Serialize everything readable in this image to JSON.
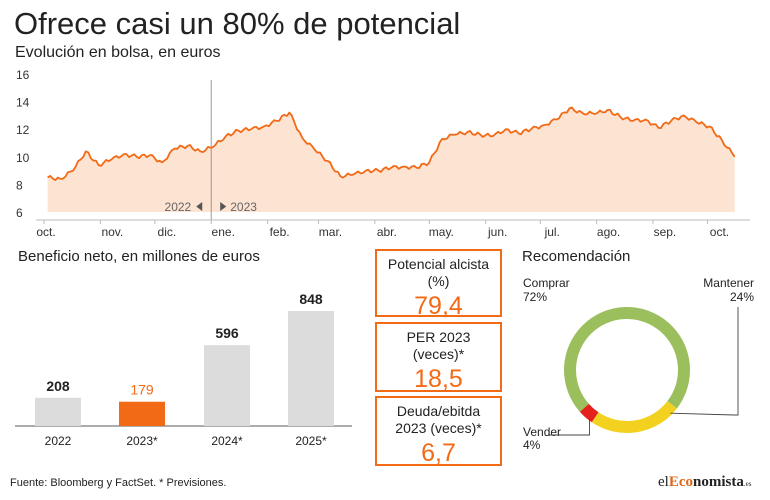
{
  "header": {
    "title": "Ofrece casi un 80% de potencial",
    "subtitle": "Evolución en bolsa, en euros"
  },
  "line": {
    "y_ticks": [
      "16",
      "14",
      "12",
      "10",
      "8",
      "6"
    ],
    "months": [
      "oct.",
      "nov.",
      "dic.",
      "ene.",
      "feb.",
      "mar.",
      "abr.",
      "may.",
      "jun.",
      "jul.",
      "ago.",
      "sep.",
      "oct."
    ],
    "year_left": "2022",
    "year_right": "2023"
  },
  "bars": {
    "title": "Beneficio neto, en millones de euros",
    "labels": [
      "208",
      "179",
      "596",
      "848"
    ],
    "categories": [
      "2022",
      "2023*",
      "2024*",
      "2025*"
    ]
  },
  "kpis": [
    {
      "label": "Potencial alcista (%)",
      "value": "79,4"
    },
    {
      "label": "PER 2023 (veces)*",
      "value": "18,5"
    },
    {
      "label": "Deuda/ebitda 2023 (veces)*",
      "value": "6,7"
    }
  ],
  "reco": {
    "title": "Recomendación",
    "items": [
      {
        "name": "Comprar",
        "pct": "72%"
      },
      {
        "name": "Mantener",
        "pct": "24%"
      },
      {
        "name": "Vender",
        "pct": "4%"
      }
    ]
  },
  "footer": {
    "source": "Fuente: Bloomberg y FactSet. * Previsiones.",
    "brand_1": "el",
    "brand_2": "Eco",
    "brand_3": "nomista",
    "brand_4": ".es"
  },
  "colors": {
    "accent": "#f26a16",
    "area_fill": "#fde3d2",
    "bar_gray": "#dcdcdc",
    "comprar": "#9cbf5e",
    "mantener": "#f3d21f",
    "vender": "#e3221e"
  },
  "chart_data": [
    {
      "type": "area",
      "title": "Ofrece casi un 80% de potencial",
      "subtitle": "Evolución en bolsa, en euros",
      "ylim": [
        6,
        16
      ],
      "y_ticks": [
        6,
        8,
        10,
        12,
        14,
        16
      ],
      "x_ticks": [
        "oct.",
        "nov.",
        "dic.",
        "ene.",
        "feb.",
        "mar.",
        "abr.",
        "may.",
        "jun.",
        "jul.",
        "ago.",
        "sep.",
        "oct."
      ],
      "grid": false,
      "series": [
        {
          "x": [
            "2022-10-03",
            "2022-10-10",
            "2022-10-17",
            "2022-10-24",
            "2022-10-31",
            "2022-11-07",
            "2022-11-14",
            "2022-11-21",
            "2022-11-28",
            "2022-12-05",
            "2022-12-12",
            "2022-12-19",
            "2022-12-26",
            "2023-01-02",
            "2023-01-09",
            "2023-01-16",
            "2023-01-23",
            "2023-01-30",
            "2023-02-06",
            "2023-02-13",
            "2023-02-20",
            "2023-02-27",
            "2023-03-06",
            "2023-03-13",
            "2023-03-20",
            "2023-03-27",
            "2023-04-03",
            "2023-04-10",
            "2023-04-17",
            "2023-04-24",
            "2023-05-01",
            "2023-05-08",
            "2023-05-15",
            "2023-05-22",
            "2023-05-29",
            "2023-06-05",
            "2023-06-12",
            "2023-06-19",
            "2023-06-26",
            "2023-07-03",
            "2023-07-10",
            "2023-07-17",
            "2023-07-24",
            "2023-07-31",
            "2023-08-07",
            "2023-08-14",
            "2023-08-21",
            "2023-08-28",
            "2023-09-04",
            "2023-09-11",
            "2023-09-18",
            "2023-09-25",
            "2023-10-02",
            "2023-10-09",
            "2023-10-16"
          ],
          "y": [
            8.5,
            8.4,
            9.0,
            10.4,
            9.4,
            9.8,
            10.2,
            10.0,
            10.1,
            9.6,
            10.6,
            10.8,
            10.4,
            10.7,
            11.5,
            11.9,
            12.0,
            12.2,
            12.6,
            13.2,
            11.4,
            10.5,
            9.7,
            8.6,
            8.7,
            9.0,
            9.0,
            9.2,
            9.3,
            9.2,
            9.6,
            11.3,
            11.6,
            11.8,
            11.6,
            11.5,
            12.0,
            11.7,
            12.0,
            12.3,
            12.7,
            13.5,
            13.2,
            13.1,
            13.4,
            12.9,
            12.6,
            12.7,
            12.1,
            12.6,
            13.0,
            12.5,
            12.2,
            11.2,
            10.0
          ]
        }
      ],
      "annotations": [
        "2022",
        "2023"
      ]
    },
    {
      "type": "bar",
      "title": "Beneficio neto, en millones de euros",
      "categories": [
        "2022",
        "2023*",
        "2024*",
        "2025*"
      ],
      "values": [
        208,
        179,
        596,
        848
      ],
      "highlight": "2023*"
    },
    {
      "type": "pie",
      "title": "Recomendación",
      "labels": [
        "Comprar",
        "Mantener",
        "Vender"
      ],
      "values": [
        72,
        24,
        4
      ]
    }
  ]
}
